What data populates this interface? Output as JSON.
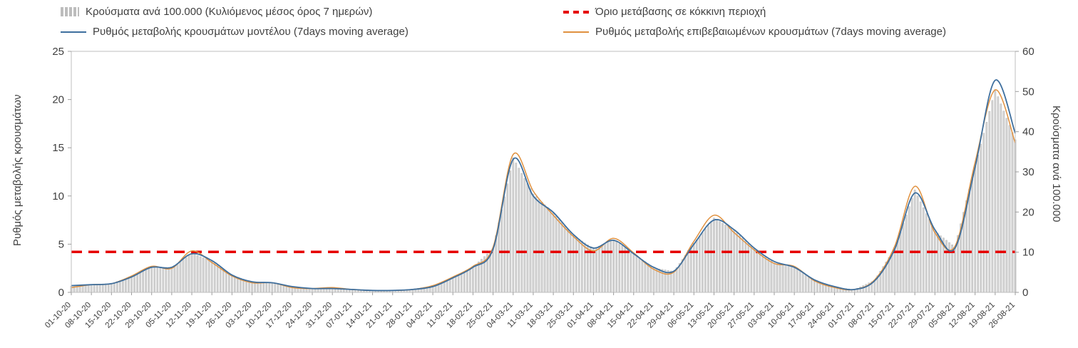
{
  "chart_data": {
    "type": "bar",
    "combo": "bars+lines",
    "title": "",
    "x_tick_labels": [
      "01-10-20",
      "08-10-20",
      "15-10-20",
      "22-10-20",
      "29-10-20",
      "05-11-20",
      "12-11-20",
      "19-11-20",
      "26-11-20",
      "03-12-20",
      "10-12-20",
      "17-12-20",
      "24-12-20",
      "31-12-20",
      "07-01-21",
      "14-01-21",
      "21-01-21",
      "28-01-21",
      "04-02-21",
      "11-02-21",
      "18-02-21",
      "25-02-21",
      "04-03-21",
      "11-03-21",
      "18-03-21",
      "25-03-21",
      "01-04-21",
      "08-04-21",
      "15-04-21",
      "22-04-21",
      "29-04-21",
      "06-05-21",
      "13-05-21",
      "20-05-21",
      "27-05-21",
      "03-06-21",
      "10-06-21",
      "17-06-21",
      "24-06-21",
      "01-07-21",
      "08-07-21",
      "15-07-21",
      "22-07-21",
      "29-07-21",
      "05-08-21",
      "12-08-21",
      "19-08-21",
      "26-08-21"
    ],
    "left_axis": {
      "label": "Ρυθμός μεταβολής κρουσμάτων",
      "min": 0,
      "max": 25,
      "ticks": [
        0,
        5,
        10,
        15,
        20,
        25
      ]
    },
    "right_axis": {
      "label": "Κρούσματα ανά 100.000",
      "min": 0,
      "max": 60,
      "ticks": [
        0,
        10,
        20,
        30,
        40,
        50,
        60
      ]
    },
    "threshold": {
      "label": "Όριο μετάβασης σε κόκκινη περιοχή",
      "value": 4.2,
      "color": "#e60000"
    },
    "series": [
      {
        "name": "Κρούσματα ανά 100.000 (Κυλιόμενος μέσος όρος 7 ημερών)",
        "type": "bar",
        "axis": "right",
        "color": "#d4d4d4",
        "border": "#a8a8a8",
        "values": [
          1.6,
          2.0,
          2.2,
          3.9,
          6.3,
          6.2,
          9.7,
          7.8,
          4.3,
          2.5,
          2.4,
          1.4,
          1.0,
          1.1,
          0.8,
          0.5,
          0.5,
          0.8,
          1.6,
          3.6,
          6.3,
          10.9,
          33.5,
          24.5,
          19.8,
          14.2,
          10.9,
          13.1,
          9.7,
          6.1,
          5.2,
          12.2,
          18.5,
          15.5,
          10.9,
          7.3,
          6.3,
          3.0,
          1.3,
          0.7,
          3.0,
          11.0,
          25.5,
          15.2,
          11.3,
          31.5,
          50.5,
          38.0
        ]
      },
      {
        "name": "Ρυθμός μεταβολής κρουσμάτων μοντέλου (7days moving average)",
        "type": "line",
        "axis": "left",
        "color": "#3e6f9e",
        "values": [
          0.7,
          0.8,
          0.9,
          1.6,
          2.6,
          2.6,
          4.0,
          3.3,
          1.8,
          1.1,
          1.0,
          0.6,
          0.4,
          0.4,
          0.3,
          0.2,
          0.2,
          0.3,
          0.6,
          1.5,
          2.6,
          4.5,
          13.8,
          10.0,
          8.3,
          6.0,
          4.6,
          5.4,
          4.0,
          2.6,
          2.2,
          5.0,
          7.5,
          6.5,
          4.6,
          3.2,
          2.6,
          1.3,
          0.6,
          0.3,
          1.2,
          4.5,
          10.3,
          6.5,
          4.6,
          13.0,
          22.0,
          16.5
        ]
      },
      {
        "name": "Ρυθμός μεταβολής επιβεβαιωμένων κρουσμάτων (7days moving average)",
        "type": "line",
        "axis": "left",
        "color": "#e0913f",
        "values": [
          0.5,
          0.8,
          0.9,
          1.7,
          2.7,
          2.5,
          4.3,
          3.1,
          1.7,
          1.0,
          1.0,
          0.5,
          0.4,
          0.5,
          0.3,
          0.2,
          0.2,
          0.3,
          0.7,
          1.6,
          2.7,
          4.7,
          14.3,
          10.5,
          8.0,
          5.8,
          4.3,
          5.6,
          4.1,
          2.4,
          2.1,
          5.3,
          8.0,
          6.2,
          4.4,
          3.0,
          2.7,
          1.2,
          0.5,
          0.3,
          1.3,
          4.8,
          11.0,
          6.2,
          4.8,
          13.5,
          21.0,
          15.5
        ]
      }
    ],
    "legend_position": "top",
    "grid": "off"
  }
}
